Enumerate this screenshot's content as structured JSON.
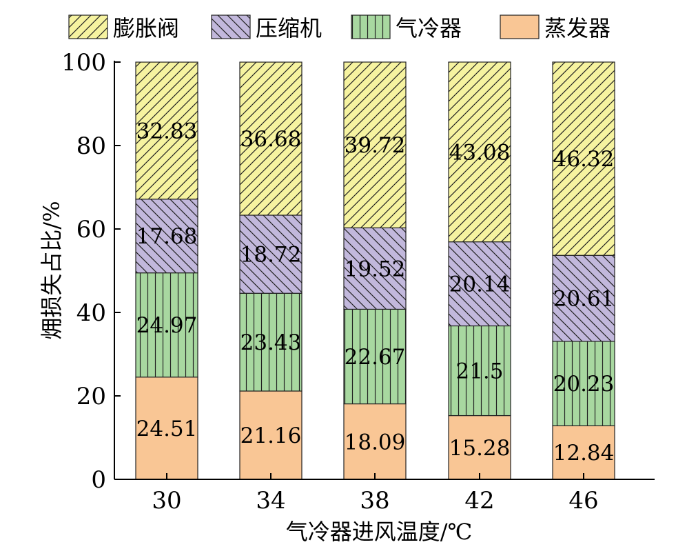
{
  "chart_data": {
    "type": "bar",
    "stacked": true,
    "categories": [
      "30",
      "34",
      "38",
      "42",
      "46"
    ],
    "series": [
      {
        "name": "蒸发器",
        "values": [
          24.51,
          21.16,
          18.09,
          15.28,
          12.84
        ],
        "color": "#f9c695",
        "pattern": "none"
      },
      {
        "name": "气冷器",
        "values": [
          24.97,
          23.43,
          22.67,
          21.5,
          20.23
        ],
        "color": "#a8d8a0",
        "pattern": "vertical"
      },
      {
        "name": "压缩机",
        "values": [
          17.68,
          18.72,
          19.52,
          20.14,
          20.61
        ],
        "color": "#c2b8dc",
        "pattern": "backslash"
      },
      {
        "name": "膨胀阀",
        "values": [
          32.83,
          36.68,
          39.72,
          43.08,
          46.32
        ],
        "color": "#f6f3a0",
        "pattern": "slash"
      }
    ],
    "legend_order": [
      "膨胀阀",
      "压缩机",
      "气冷器",
      "蒸发器"
    ],
    "legend_position": "top",
    "xlabel": "气冷器进风温度/℃",
    "ylabel": "㶲损失占比/%",
    "ylim": [
      0,
      100
    ],
    "yticks": [
      0,
      20,
      40,
      60,
      80,
      100
    ],
    "grid": false
  }
}
